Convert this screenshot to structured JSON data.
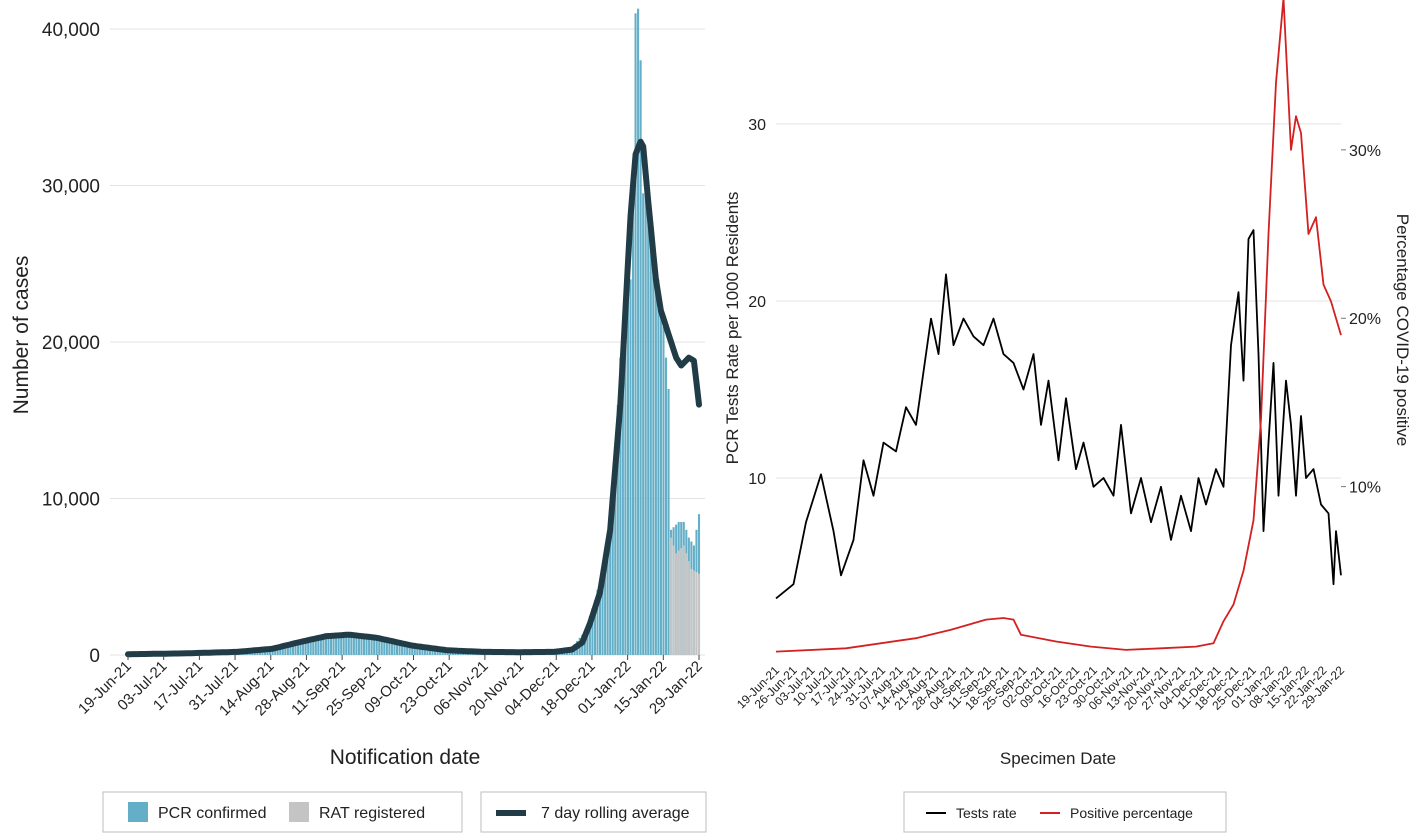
{
  "chart_data": [
    {
      "type": "bar",
      "xlabel": "Notification date",
      "ylabel": "Number of cases",
      "ylim": [
        0,
        42000
      ],
      "yticks": [
        0,
        10000,
        20000,
        30000,
        40000
      ],
      "ytick_labels": [
        "0",
        "10,000",
        "20,000",
        "30,000",
        "40,000"
      ],
      "x_start": "2021-06-19",
      "x_end": "2022-01-30",
      "xtick_labels": [
        "19-Jun-21",
        "03-Jul-21",
        "17-Jul-21",
        "31-Jul-21",
        "14-Aug-21",
        "28-Aug-21",
        "11-Sep-21",
        "25-Sep-21",
        "09-Oct-21",
        "23-Oct-21",
        "06-Nov-21",
        "20-Nov-21",
        "04-Dec-21",
        "18-Dec-21",
        "01-Jan-22",
        "15-Jan-22",
        "29-Jan-22"
      ],
      "grid": true,
      "legend": "bottom",
      "series": [
        {
          "name": "PCR confirmed",
          "color": "#64afc7",
          "style": "bars"
        },
        {
          "name": "RAT registered",
          "color": "#c4c4c4",
          "style": "bars"
        },
        {
          "name": "7 day rolling average",
          "color": "#213c47",
          "style": "line"
        }
      ],
      "pcr_points": [
        [
          "2021-06-19",
          60
        ],
        [
          "2021-07-17",
          120
        ],
        [
          "2021-08-01",
          250
        ],
        [
          "2021-08-14",
          450
        ],
        [
          "2021-08-28",
          900
        ],
        [
          "2021-09-07",
          1250
        ],
        [
          "2021-09-14",
          1250
        ],
        [
          "2021-09-28",
          900
        ],
        [
          "2021-10-12",
          500
        ],
        [
          "2021-10-26",
          300
        ],
        [
          "2021-11-09",
          220
        ],
        [
          "2021-11-23",
          200
        ],
        [
          "2021-12-04",
          250
        ],
        [
          "2021-12-11",
          500
        ],
        [
          "2021-12-16",
          1500
        ],
        [
          "2021-12-20",
          3500
        ],
        [
          "2021-12-23",
          5500
        ],
        [
          "2021-12-26",
          9000
        ],
        [
          "2021-12-28",
          13000
        ],
        [
          "2021-12-30",
          19000
        ],
        [
          "2022-01-01",
          22000
        ],
        [
          "2022-01-03",
          24000
        ],
        [
          "2022-01-04",
          29000
        ],
        [
          "2022-01-05",
          41000
        ],
        [
          "2022-01-06",
          41300
        ],
        [
          "2022-01-07",
          38000
        ],
        [
          "2022-01-08",
          29500
        ],
        [
          "2022-01-10",
          30000
        ],
        [
          "2022-01-12",
          26000
        ],
        [
          "2022-01-14",
          24000
        ],
        [
          "2022-01-16",
          21000
        ],
        [
          "2022-01-18",
          17000
        ],
        [
          "2022-01-19",
          8000
        ],
        [
          "2022-01-22",
          8500
        ],
        [
          "2022-01-24",
          8500
        ],
        [
          "2022-01-26",
          7500
        ],
        [
          "2022-01-28",
          7000
        ],
        [
          "2022-01-30",
          9000
        ]
      ],
      "rat_points": [
        [
          "2022-01-18",
          0
        ],
        [
          "2022-01-19",
          7500
        ],
        [
          "2022-01-21",
          6500
        ],
        [
          "2022-01-24",
          7000
        ],
        [
          "2022-01-27",
          5500
        ],
        [
          "2022-01-30",
          5200
        ]
      ],
      "avg_points": [
        [
          "2021-06-19",
          50
        ],
        [
          "2021-07-10",
          100
        ],
        [
          "2021-08-01",
          200
        ],
        [
          "2021-08-15",
          400
        ],
        [
          "2021-08-25",
          800
        ],
        [
          "2021-09-05",
          1200
        ],
        [
          "2021-09-14",
          1300
        ],
        [
          "2021-09-25",
          1100
        ],
        [
          "2021-10-09",
          600
        ],
        [
          "2021-10-23",
          300
        ],
        [
          "2021-11-06",
          200
        ],
        [
          "2021-11-20",
          180
        ],
        [
          "2021-12-04",
          200
        ],
        [
          "2021-12-11",
          350
        ],
        [
          "2021-12-15",
          800
        ],
        [
          "2021-12-18",
          2000
        ],
        [
          "2021-12-22",
          4000
        ],
        [
          "2021-12-26",
          8000
        ],
        [
          "2021-12-30",
          16000
        ],
        [
          "2022-01-01",
          22000
        ],
        [
          "2022-01-03",
          28000
        ],
        [
          "2022-01-05",
          32000
        ],
        [
          "2022-01-07",
          32800
        ],
        [
          "2022-01-08",
          32500
        ],
        [
          "2022-01-10",
          29000
        ],
        [
          "2022-01-13",
          24000
        ],
        [
          "2022-01-15",
          22000
        ],
        [
          "2022-01-18",
          20500
        ],
        [
          "2022-01-21",
          19000
        ],
        [
          "2022-01-23",
          18500
        ],
        [
          "2022-01-26",
          19000
        ],
        [
          "2022-01-28",
          18800
        ],
        [
          "2022-01-30",
          16000
        ]
      ]
    },
    {
      "type": "line",
      "xlabel": "Specimen Date",
      "ylabel": "PCR Tests Rate per 1000 Residents",
      "y2label": "Percentage COVID-19 positive",
      "ylim": [
        0,
        37
      ],
      "yticks": [
        10,
        20,
        30
      ],
      "ytick_labels": [
        "10",
        "20",
        "30"
      ],
      "y2lim": [
        0,
        0.389
      ],
      "y2ticks": [
        0.1,
        0.2,
        0.3
      ],
      "y2tick_labels": [
        "10%",
        "20%",
        "30%"
      ],
      "x_start": "2021-06-19",
      "x_end": "2022-01-31",
      "xtick_labels": [
        "19-Jun-21",
        "26-Jun-21",
        "03-Jul-21",
        "10-Jul-21",
        "17-Jul-21",
        "24-Jul-21",
        "31-Jul-21",
        "07-Aug-21",
        "14-Aug-21",
        "21-Aug-21",
        "28-Aug-21",
        "04-Sep-21",
        "11-Sep-21",
        "18-Sep-21",
        "25-Sep-21",
        "02-Oct-21",
        "09-Oct-21",
        "16-Oct-21",
        "23-Oct-21",
        "30-Oct-21",
        "06-Nov-21",
        "13-Nov-21",
        "20-Nov-21",
        "27-Nov-21",
        "04-Dec-21",
        "11-Dec-21",
        "18-Dec-21",
        "25-Dec-21",
        "01-Jan-22",
        "08-Jan-22",
        "15-Jan-22",
        "22-Jan-22",
        "29-Jan-22"
      ],
      "grid": true,
      "legend": "bottom",
      "series": [
        {
          "name": "Tests rate",
          "color": "#000000",
          "axis": "left",
          "points": [
            [
              "2021-06-19",
              3.2
            ],
            [
              "2021-06-26",
              4.0
            ],
            [
              "2021-07-01",
              7.5
            ],
            [
              "2021-07-07",
              10.2
            ],
            [
              "2021-07-12",
              7.0
            ],
            [
              "2021-07-15",
              4.5
            ],
            [
              "2021-07-20",
              6.5
            ],
            [
              "2021-07-24",
              11.0
            ],
            [
              "2021-07-28",
              9.0
            ],
            [
              "2021-08-01",
              12.0
            ],
            [
              "2021-08-06",
              11.5
            ],
            [
              "2021-08-10",
              14.0
            ],
            [
              "2021-08-14",
              13.0
            ],
            [
              "2021-08-17",
              16.0
            ],
            [
              "2021-08-20",
              19.0
            ],
            [
              "2021-08-23",
              17.0
            ],
            [
              "2021-08-26",
              21.5
            ],
            [
              "2021-08-29",
              17.5
            ],
            [
              "2021-09-02",
              19.0
            ],
            [
              "2021-09-06",
              18.0
            ],
            [
              "2021-09-10",
              17.5
            ],
            [
              "2021-09-14",
              19.0
            ],
            [
              "2021-09-18",
              17.0
            ],
            [
              "2021-09-22",
              16.5
            ],
            [
              "2021-09-26",
              15.0
            ],
            [
              "2021-09-30",
              17.0
            ],
            [
              "2021-10-03",
              13.0
            ],
            [
              "2021-10-06",
              15.5
            ],
            [
              "2021-10-10",
              11.0
            ],
            [
              "2021-10-13",
              14.5
            ],
            [
              "2021-10-17",
              10.5
            ],
            [
              "2021-10-20",
              12.0
            ],
            [
              "2021-10-24",
              9.5
            ],
            [
              "2021-10-28",
              10.0
            ],
            [
              "2021-11-01",
              9.0
            ],
            [
              "2021-11-04",
              13.0
            ],
            [
              "2021-11-08",
              8.0
            ],
            [
              "2021-11-12",
              10.0
            ],
            [
              "2021-11-16",
              7.5
            ],
            [
              "2021-11-20",
              9.5
            ],
            [
              "2021-11-24",
              6.5
            ],
            [
              "2021-11-28",
              9.0
            ],
            [
              "2021-12-02",
              7.0
            ],
            [
              "2021-12-05",
              10.0
            ],
            [
              "2021-12-08",
              8.5
            ],
            [
              "2021-12-12",
              10.5
            ],
            [
              "2021-12-15",
              9.5
            ],
            [
              "2021-12-18",
              17.5
            ],
            [
              "2021-12-21",
              20.5
            ],
            [
              "2021-12-23",
              15.5
            ],
            [
              "2021-12-25",
              23.5
            ],
            [
              "2021-12-27",
              24.0
            ],
            [
              "2021-12-29",
              17.0
            ],
            [
              "2021-12-31",
              7.0
            ],
            [
              "2022-01-02",
              12.0
            ],
            [
              "2022-01-04",
              16.5
            ],
            [
              "2022-01-06",
              9.0
            ],
            [
              "2022-01-09",
              15.5
            ],
            [
              "2022-01-11",
              13.0
            ],
            [
              "2022-01-13",
              9.0
            ],
            [
              "2022-01-15",
              13.5
            ],
            [
              "2022-01-17",
              10.0
            ],
            [
              "2022-01-20",
              10.5
            ],
            [
              "2022-01-23",
              8.5
            ],
            [
              "2022-01-26",
              8.0
            ],
            [
              "2022-01-28",
              4.0
            ],
            [
              "2022-01-29",
              7.0
            ],
            [
              "2022-01-31",
              4.5
            ]
          ]
        },
        {
          "name": "Positive percentage",
          "color": "#d42020",
          "axis": "right",
          "points": [
            [
              "2021-06-19",
              0.002
            ],
            [
              "2021-07-17",
              0.004
            ],
            [
              "2021-08-14",
              0.01
            ],
            [
              "2021-08-28",
              0.015
            ],
            [
              "2021-09-11",
              0.021
            ],
            [
              "2021-09-18",
              0.022
            ],
            [
              "2021-09-22",
              0.021
            ],
            [
              "2021-09-25",
              0.012
            ],
            [
              "2021-10-09",
              0.008
            ],
            [
              "2021-10-23",
              0.005
            ],
            [
              "2021-11-06",
              0.003
            ],
            [
              "2021-11-20",
              0.004
            ],
            [
              "2021-12-04",
              0.005
            ],
            [
              "2021-12-11",
              0.007
            ],
            [
              "2021-12-15",
              0.02
            ],
            [
              "2021-12-19",
              0.03
            ],
            [
              "2021-12-23",
              0.05
            ],
            [
              "2021-12-27",
              0.08
            ],
            [
              "2021-12-30",
              0.14
            ],
            [
              "2022-01-02",
              0.25
            ],
            [
              "2022-01-05",
              0.34
            ],
            [
              "2022-01-08",
              0.39
            ],
            [
              "2022-01-11",
              0.3
            ],
            [
              "2022-01-13",
              0.32
            ],
            [
              "2022-01-15",
              0.31
            ],
            [
              "2022-01-18",
              0.25
            ],
            [
              "2022-01-21",
              0.26
            ],
            [
              "2022-01-24",
              0.22
            ],
            [
              "2022-01-27",
              0.21
            ],
            [
              "2022-01-29",
              0.2
            ],
            [
              "2022-01-31",
              0.19
            ]
          ]
        }
      ]
    }
  ]
}
